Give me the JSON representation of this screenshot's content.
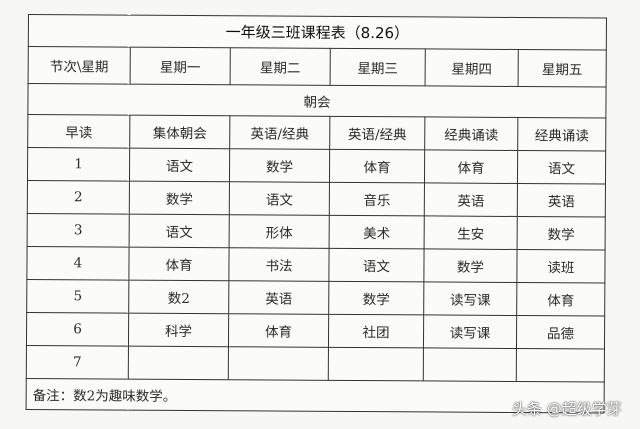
{
  "title": "一年级三班课程表（8.26）",
  "headers": [
    "节次\\星期",
    "星期一",
    "星期二",
    "星期三",
    "星期四",
    "星期五"
  ],
  "assembly": "朝会",
  "rows": [
    [
      "早读",
      "集体朝会",
      "英语/经典",
      "英语/经典",
      "经典诵读",
      "经典诵读"
    ],
    [
      "1",
      "语文",
      "数学",
      "体育",
      "体育",
      "语文"
    ],
    [
      "2",
      "数学",
      "语文",
      "音乐",
      "英语",
      "英语"
    ],
    [
      "3",
      "语文",
      "形体",
      "美术",
      "生安",
      "数学"
    ],
    [
      "4",
      "体育",
      "书法",
      "语文",
      "数学",
      "读班"
    ],
    [
      "5",
      "数2",
      "英语",
      "数学",
      "读写课",
      "体育"
    ],
    [
      "6",
      "科学",
      "体育",
      "社团",
      "读写课",
      "品德"
    ],
    [
      "7",
      "",
      "",
      "",
      "",
      ""
    ]
  ],
  "note": "备注：数2为趣味数学。",
  "watermark": "头条 @超级学芽"
}
